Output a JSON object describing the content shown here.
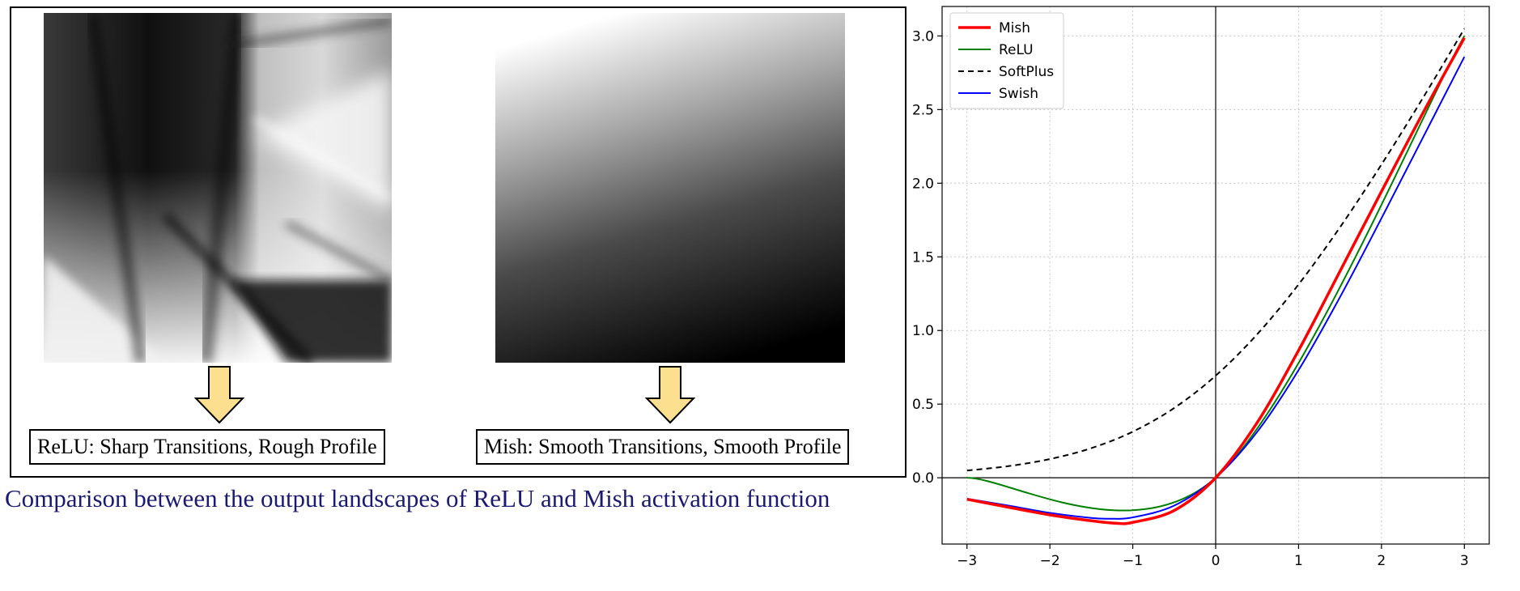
{
  "left_panel": {
    "relu_caption": "ReLU: Sharp Transitions, Rough Profile",
    "mish_caption": "Mish: Smooth Transitions, Smooth Profile",
    "comparison_text": "Comparison between the output landscapes of ReLU and Mish activation function",
    "arrow_color": "#fde08f"
  },
  "chart_data": {
    "type": "line",
    "xlim": [
      -3.3,
      3.3
    ],
    "ylim": [
      -0.45,
      3.2
    ],
    "xticks": [
      -3,
      -2,
      -1,
      0,
      1,
      2,
      3
    ],
    "xtick_labels": [
      "−3",
      "−2",
      "−1",
      "0",
      "1",
      "2",
      "3"
    ],
    "yticks": [
      0.0,
      0.5,
      1.0,
      1.5,
      2.0,
      2.5,
      3.0
    ],
    "ytick_labels": [
      "0.0",
      "0.5",
      "1.0",
      "1.5",
      "2.0",
      "2.5",
      "3.0"
    ],
    "grid": true,
    "legend_position": "top-left",
    "series": [
      {
        "name": "Mish",
        "color": "#ff0000",
        "style": "solid",
        "x": [
          -3,
          -2.5,
          -2,
          -1.5,
          -1.2,
          -1,
          -0.5,
          0,
          0.5,
          1,
          1.5,
          2,
          2.5,
          3
        ],
        "y": [
          -0.146,
          -0.2,
          -0.252,
          -0.292,
          -0.309,
          -0.303,
          -0.222,
          0,
          0.374,
          0.865,
          1.403,
          1.944,
          2.477,
          2.987
        ]
      },
      {
        "name": "ReLU",
        "color": "#008000",
        "style": "solid",
        "x": [
          -3,
          0,
          3
        ],
        "y": [
          0,
          0,
          3
        ]
      },
      {
        "name": "SoftPlus",
        "color": "#000000",
        "style": "dashed",
        "x": [
          -3,
          -2.5,
          -2,
          -1.5,
          -1,
          -0.5,
          0,
          0.5,
          1,
          1.5,
          2,
          2.5,
          3
        ],
        "y": [
          0.049,
          0.079,
          0.127,
          0.201,
          0.313,
          0.474,
          0.693,
          0.974,
          1.313,
          1.701,
          2.127,
          2.579,
          3.049
        ]
      },
      {
        "name": "Swish",
        "color": "#0000ff",
        "style": "solid",
        "x": [
          -3,
          -2.5,
          -2,
          -1.5,
          -1.28,
          -1,
          -0.5,
          0,
          0.5,
          1,
          1.5,
          2,
          2.5,
          3
        ],
        "y": [
          -0.142,
          -0.189,
          -0.238,
          -0.273,
          -0.278,
          -0.269,
          -0.189,
          0,
          0.311,
          0.731,
          1.227,
          1.762,
          2.31,
          2.858
        ]
      }
    ]
  }
}
